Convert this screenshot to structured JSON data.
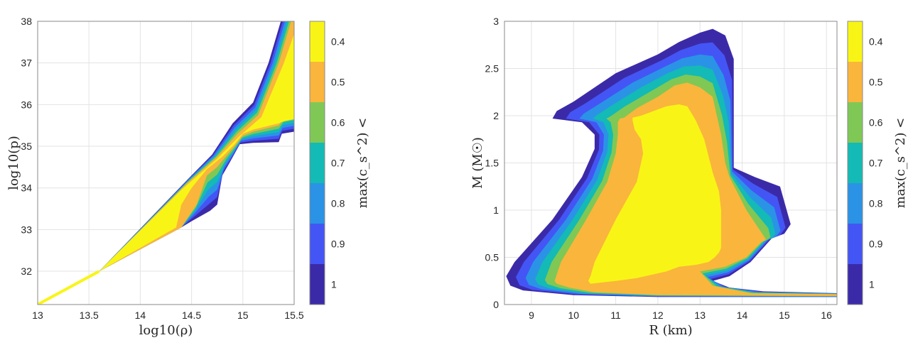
{
  "colorbar": {
    "label": "max(c_s^2) <",
    "ticks": [
      "0.4",
      "0.5",
      "0.6",
      "0.7",
      "0.8",
      "0.9",
      "1"
    ],
    "colors": [
      "#f8f516",
      "#fab53c",
      "#7fc855",
      "#14bab5",
      "#2a93e6",
      "#4455f5",
      "#3b2aa8"
    ]
  },
  "chart_data": [
    {
      "type": "area",
      "title": "",
      "xlabel": "log10(ρ)",
      "ylabel": "log10(p)",
      "xlim": [
        13,
        15.5
      ],
      "ylim": [
        31.2,
        38
      ],
      "xticks": [
        13,
        13.5,
        14,
        14.5,
        15,
        15.5
      ],
      "yticks": [
        32,
        33,
        34,
        35,
        36,
        37,
        38
      ],
      "grid": true,
      "line": [
        [
          13,
          31.2
        ],
        [
          13.6,
          32
        ]
      ],
      "outer": [
        [
          13.6,
          32
        ],
        [
          14.5,
          34.3
        ],
        [
          14.7,
          34.8
        ],
        [
          14.9,
          35.55
        ],
        [
          15.1,
          36.05
        ],
        [
          15.25,
          37
        ],
        [
          15.37,
          38
        ],
        [
          15.5,
          38
        ],
        [
          15.5,
          35.35
        ],
        [
          15.38,
          35.3
        ],
        [
          15.35,
          35.1
        ],
        [
          15.1,
          35.08
        ],
        [
          14.97,
          35.05
        ],
        [
          14.87,
          34.6
        ],
        [
          14.8,
          34.3
        ],
        [
          14.75,
          33.6
        ],
        [
          14.68,
          33.45
        ],
        [
          14.5,
          33.2
        ],
        [
          14.4,
          33.05
        ]
      ],
      "mid": [
        [
          13.6,
          32
        ],
        [
          14.45,
          34.1
        ],
        [
          14.75,
          34.75
        ],
        [
          14.95,
          35.3
        ],
        [
          15.15,
          35.75
        ],
        [
          15.35,
          37
        ],
        [
          15.47,
          38
        ],
        [
          15.5,
          38
        ],
        [
          15.5,
          35.7
        ],
        [
          15.4,
          35.65
        ],
        [
          15.35,
          35.5
        ],
        [
          15.1,
          35.35
        ],
        [
          15.0,
          35.25
        ],
        [
          14.92,
          35.0
        ],
        [
          14.85,
          34.8
        ],
        [
          14.75,
          34.5
        ],
        [
          14.65,
          34.3
        ],
        [
          14.55,
          33.6
        ],
        [
          14.4,
          33.05
        ]
      ],
      "inner": [
        [
          13.6,
          32
        ],
        [
          14.4,
          33.95
        ],
        [
          14.75,
          34.7
        ],
        [
          14.97,
          35.25
        ],
        [
          15.18,
          35.7
        ],
        [
          15.4,
          37
        ],
        [
          15.5,
          37.7
        ],
        [
          15.5,
          35.65
        ],
        [
          15.4,
          35.6
        ],
        [
          15.35,
          35.55
        ],
        [
          15.1,
          35.4
        ],
        [
          15.0,
          35.3
        ],
        [
          14.92,
          35.05
        ],
        [
          14.8,
          34.75
        ],
        [
          14.65,
          34.45
        ],
        [
          14.5,
          34.0
        ],
        [
          14.4,
          33.6
        ],
        [
          14.35,
          33.05
        ]
      ]
    },
    {
      "type": "area",
      "title": "",
      "xlabel": "R (km)",
      "ylabel": "M (M☉)",
      "xlim": [
        8.36,
        16.25
      ],
      "ylim": [
        0,
        3
      ],
      "xticks": [
        9,
        10,
        11,
        12,
        13,
        14,
        15,
        16
      ],
      "yticks": [
        0,
        0.5,
        1,
        1.5,
        2,
        2.5,
        3
      ],
      "grid": true,
      "outer": [
        [
          9.5,
          1.97
        ],
        [
          9.6,
          2.05
        ],
        [
          10,
          2.15
        ],
        [
          11,
          2.45
        ],
        [
          12,
          2.65
        ],
        [
          12.5,
          2.78
        ],
        [
          13,
          2.88
        ],
        [
          13.3,
          2.92
        ],
        [
          13.6,
          2.85
        ],
        [
          13.8,
          2.6
        ],
        [
          13.8,
          1.45
        ],
        [
          14.3,
          1.35
        ],
        [
          14.9,
          1.25
        ],
        [
          15.15,
          0.85
        ],
        [
          15.0,
          0.75
        ],
        [
          14.7,
          0.7
        ],
        [
          14.2,
          0.45
        ],
        [
          13.7,
          0.3
        ],
        [
          13.3,
          0.25
        ],
        [
          13.7,
          0.18
        ],
        [
          14.5,
          0.14
        ],
        [
          16.25,
          0.12
        ],
        [
          16.25,
          0.08
        ],
        [
          12,
          0.08
        ],
        [
          10,
          0.1
        ],
        [
          8.8,
          0.15
        ],
        [
          8.5,
          0.2
        ],
        [
          8.4,
          0.3
        ],
        [
          8.6,
          0.45
        ],
        [
          9.5,
          0.9
        ],
        [
          10.2,
          1.35
        ],
        [
          10.5,
          1.65
        ],
        [
          10.5,
          1.8
        ],
        [
          10.2,
          1.93
        ]
      ],
      "mid": [
        [
          11.1,
          1.97
        ],
        [
          11.2,
          1.98
        ],
        [
          11.5,
          2.08
        ],
        [
          12,
          2.2
        ],
        [
          12.4,
          2.32
        ],
        [
          12.7,
          2.35
        ],
        [
          13.0,
          2.3
        ],
        [
          13.3,
          2.2
        ],
        [
          13.5,
          1.8
        ],
        [
          13.6,
          1.5
        ],
        [
          13.7,
          1.35
        ],
        [
          14.1,
          1.0
        ],
        [
          14.55,
          0.7
        ],
        [
          14.55,
          0.68
        ],
        [
          14.5,
          0.67
        ],
        [
          14.45,
          0.66
        ],
        [
          14.1,
          0.5
        ],
        [
          13.6,
          0.4
        ],
        [
          13.0,
          0.35
        ],
        [
          13.3,
          0.2
        ],
        [
          14.2,
          0.12
        ],
        [
          16.25,
          0.11
        ],
        [
          16.25,
          0.09
        ],
        [
          12,
          0.1
        ],
        [
          10.5,
          0.13
        ],
        [
          9.9,
          0.18
        ],
        [
          9.6,
          0.22
        ],
        [
          9.55,
          0.25
        ],
        [
          9.7,
          0.45
        ],
        [
          10.3,
          0.9
        ],
        [
          10.8,
          1.3
        ],
        [
          11.0,
          1.6
        ],
        [
          11.05,
          1.8
        ],
        [
          11.05,
          1.93
        ]
      ],
      "inner": [
        [
          11.4,
          1.98
        ],
        [
          11.6,
          2.0
        ],
        [
          11.9,
          2.05
        ],
        [
          12.2,
          2.1
        ],
        [
          12.5,
          2.12
        ],
        [
          12.7,
          2.1
        ],
        [
          12.9,
          1.95
        ],
        [
          13.1,
          1.75
        ],
        [
          13.3,
          1.4
        ],
        [
          13.45,
          1.2
        ],
        [
          13.5,
          1.0
        ],
        [
          13.5,
          0.8
        ],
        [
          13.5,
          0.6
        ],
        [
          13.45,
          0.55
        ],
        [
          13.35,
          0.5
        ],
        [
          13.2,
          0.45
        ],
        [
          12.9,
          0.42
        ],
        [
          12.5,
          0.4
        ],
        [
          12.2,
          0.35
        ],
        [
          11.5,
          0.28
        ],
        [
          11.0,
          0.25
        ],
        [
          10.6,
          0.23
        ],
        [
          10.4,
          0.22
        ],
        [
          10.35,
          0.25
        ],
        [
          10.4,
          0.3
        ],
        [
          10.5,
          0.45
        ],
        [
          11,
          0.9
        ],
        [
          11.5,
          1.3
        ],
        [
          11.65,
          1.6
        ],
        [
          11.6,
          1.75
        ],
        [
          11.45,
          1.85
        ],
        [
          11.4,
          1.95
        ]
      ]
    }
  ]
}
